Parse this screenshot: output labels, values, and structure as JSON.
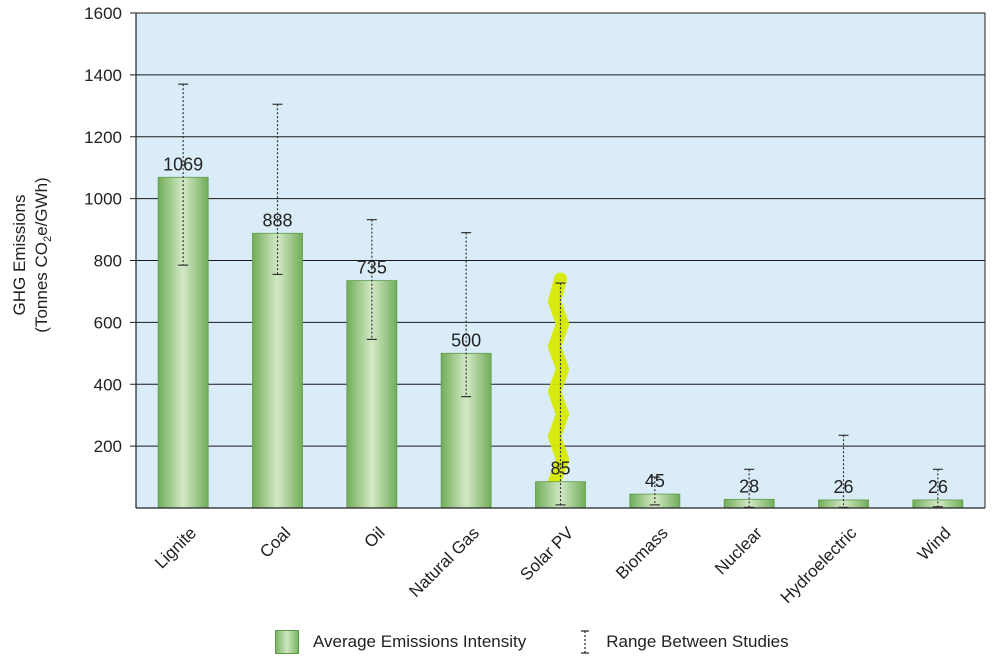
{
  "chart_data": {
    "type": "bar",
    "title": "",
    "ylabel_line1": "GHG Emissions",
    "ylabel_line2_prefix": "(Tonnes CO",
    "ylabel_line2_sub": "2",
    "ylabel_line2_suffix": "e/GWh)",
    "xlabel": "",
    "ylim": [
      0,
      1600
    ],
    "yticks": [
      200,
      400,
      600,
      800,
      1000,
      1200,
      1400,
      1600
    ],
    "grid": true,
    "categories": [
      "Lignite",
      "Coal",
      "Oil",
      "Natural Gas",
      "Solar PV",
      "Biomass",
      "Nuclear",
      "Hydroelectric",
      "Wind"
    ],
    "series": [
      {
        "name": "Average Emissions Intensity",
        "values": [
          1069,
          888,
          735,
          500,
          85,
          45,
          28,
          26,
          26
        ],
        "labels": [
          "1069",
          "888",
          "735",
          "500",
          "85",
          "45",
          "28",
          "26",
          "26"
        ]
      },
      {
        "name": "Range Between Studies",
        "low": [
          785,
          755,
          545,
          360,
          10,
          10,
          2,
          2,
          4
        ],
        "high": [
          1370,
          1305,
          932,
          890,
          727,
          100,
          125,
          235,
          125
        ]
      }
    ],
    "annotation": {
      "type": "highlight",
      "category": "Solar PV",
      "range": [
        85,
        740
      ],
      "color": "#d6ea00"
    },
    "legend": {
      "position": "bottom",
      "items": [
        "Average Emissions Intensity",
        "Range Between Studies"
      ]
    },
    "colors": {
      "plot_bg": "#d9ecf8",
      "bar": "#82bb6a",
      "bar_light": "#d3e9c6",
      "highlight": "#d6ea00",
      "grid": "#1a1a1a"
    }
  }
}
